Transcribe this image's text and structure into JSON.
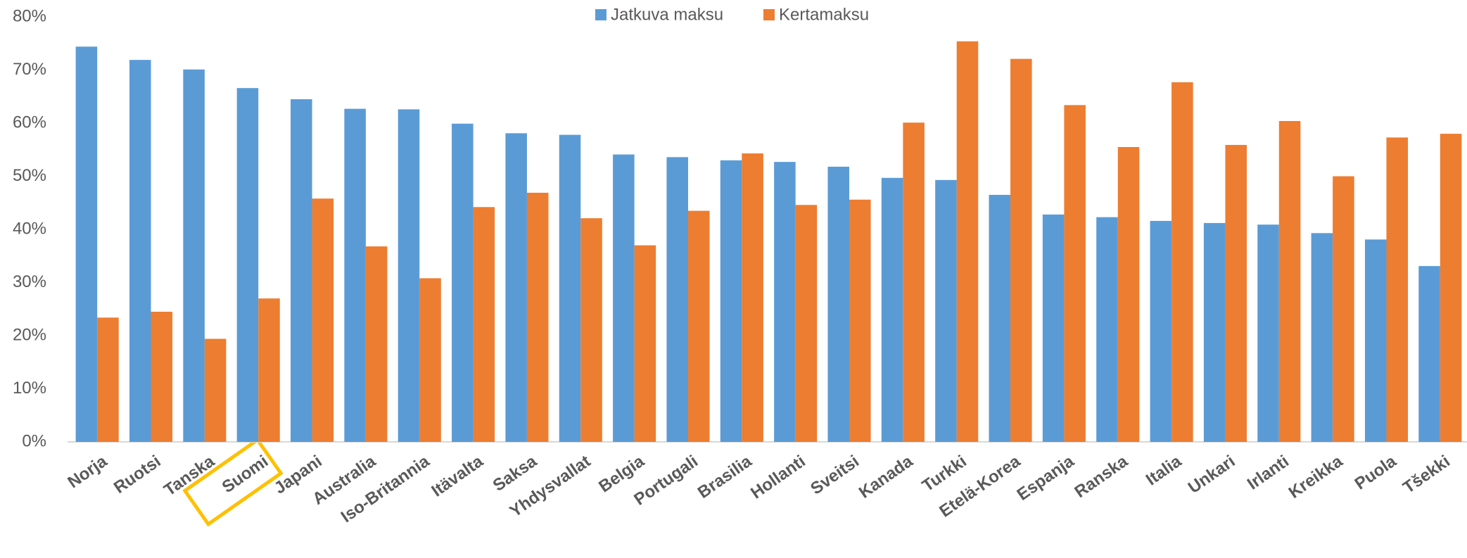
{
  "chart_data": {
    "type": "bar",
    "categories": [
      "Norja",
      "Ruotsi",
      "Tanska",
      "Suomi",
      "Japani",
      "Australia",
      "Iso-Britannia",
      "Itävalta",
      "Saksa",
      "Yhdysvallat",
      "Belgia",
      "Portugali",
      "Brasilia",
      "Hollanti",
      "Sveitsi",
      "Kanada",
      "Turkki",
      "Etelä-Korea",
      "Espanja",
      "Ranska",
      "Italia",
      "Unkari",
      "Irlanti",
      "Kreikka",
      "Puola",
      "Tšekki"
    ],
    "series": [
      {
        "name": "Jatkuva maksu",
        "color": "#5b9bd5",
        "values": [
          74.4,
          71.9,
          70.1,
          66.6,
          64.5,
          62.7,
          62.6,
          59.9,
          58.1,
          57.8,
          54.1,
          53.6,
          53.0,
          52.7,
          51.8,
          49.7,
          49.3,
          46.5,
          42.8,
          42.3,
          41.6,
          41.2,
          40.9,
          39.3,
          38.1,
          33.1
        ]
      },
      {
        "name": "Kertamaksu",
        "color": "#ed7d31",
        "values": [
          23.4,
          24.5,
          19.4,
          27.0,
          45.8,
          36.8,
          30.8,
          44.2,
          46.9,
          42.1,
          37.0,
          43.5,
          54.3,
          44.6,
          45.6,
          60.1,
          75.4,
          72.1,
          63.4,
          55.5,
          67.7,
          55.9,
          60.4,
          50.0,
          57.3,
          58.0
        ]
      }
    ],
    "ylim": [
      0,
      80
    ],
    "yticks": [
      {
        "value": 0,
        "label": "0%"
      },
      {
        "value": 10,
        "label": "10%"
      },
      {
        "value": 20,
        "label": "20%"
      },
      {
        "value": 30,
        "label": "30%"
      },
      {
        "value": 40,
        "label": "40%"
      },
      {
        "value": 50,
        "label": "50%"
      },
      {
        "value": 60,
        "label": "60%"
      },
      {
        "value": 70,
        "label": "70%"
      },
      {
        "value": 80,
        "label": "80%"
      }
    ],
    "grid": false,
    "legend": "top"
  }
}
